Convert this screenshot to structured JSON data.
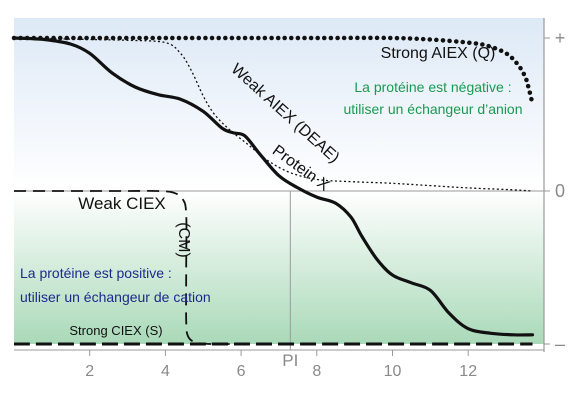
{
  "chart_data": {
    "type": "line",
    "title": "",
    "xlabel": "",
    "ylabel": "",
    "xlim": [
      0,
      14
    ],
    "ylim": [
      -1,
      1
    ],
    "x_ticks": [
      2,
      4,
      6,
      8,
      10,
      12
    ],
    "x_tick_labels": [
      "2",
      "4",
      "6",
      "8",
      "10",
      "12"
    ],
    "pi_label": "PI",
    "pi_value": 7.3,
    "y_ticks": [
      {
        "value": 1,
        "label": "+"
      },
      {
        "value": 0,
        "label": "0"
      },
      {
        "value": -1,
        "label": "–"
      }
    ],
    "colors": {
      "top_region": "#dde9f6",
      "bottom_region": "#a9d9b8",
      "negative_text": "#1a9a50",
      "positive_text": "#1c2a8c",
      "curve": "#111111",
      "axis": "#9a9a9a"
    },
    "series": [
      {
        "name": "Protein X",
        "style": "solid",
        "x": [
          0,
          0.8,
          1.5,
          2,
          2.6,
          3.2,
          3.8,
          4.4,
          5,
          5.5,
          5.8,
          6.1,
          6.5,
          7,
          7.5,
          8,
          8.5,
          8.9,
          9.2,
          9.6,
          10,
          10.5,
          11,
          11.5,
          12,
          12.6,
          13.2,
          13.7
        ],
        "y": [
          1,
          0.99,
          0.96,
          0.9,
          0.77,
          0.68,
          0.63,
          0.6,
          0.52,
          0.41,
          0.38,
          0.36,
          0.24,
          0.1,
          0.02,
          -0.04,
          -0.08,
          -0.17,
          -0.3,
          -0.45,
          -0.55,
          -0.6,
          -0.65,
          -0.8,
          -0.9,
          -0.93,
          -0.94,
          -0.94
        ]
      },
      {
        "name": "Weak AIEX (DEAE)",
        "style": "dotted",
        "x": [
          0,
          2,
          3,
          4,
          4.4,
          4.7,
          5,
          5.3,
          5.7,
          6.2,
          6.7,
          7.2,
          7.7,
          8.2,
          9,
          10,
          11,
          12,
          13,
          13.7
        ],
        "y": [
          1,
          0.99,
          0.985,
          0.97,
          0.9,
          0.78,
          0.62,
          0.5,
          0.4,
          0.3,
          0.2,
          0.13,
          0.09,
          0.07,
          0.06,
          0.05,
          0.035,
          0.02,
          0.01,
          0.0
        ]
      },
      {
        "name": "Strong AIEX (Q)",
        "style": "heavy-dotted",
        "x": [
          0,
          4,
          8,
          10,
          11,
          12,
          12.5,
          13,
          13.3,
          13.5,
          13.6,
          13.7
        ],
        "y": [
          1,
          1,
          1,
          1,
          0.99,
          0.97,
          0.95,
          0.9,
          0.83,
          0.75,
          0.67,
          0.57
        ]
      },
      {
        "name": "Weak CIEX (CM)",
        "style": "dashed",
        "x": [
          0,
          1,
          2,
          3,
          3.8,
          4.2,
          4.45,
          4.55,
          4.55,
          4.55,
          4.6,
          4.8,
          5.2,
          5.7
        ],
        "y": [
          0,
          0,
          0,
          0,
          0,
          -0.01,
          -0.05,
          -0.15,
          -0.5,
          -0.85,
          -0.95,
          -0.99,
          -1,
          -1
        ]
      },
      {
        "name": "Strong CIEX (S)",
        "style": "heavy-dashed",
        "x": [
          0,
          13.7
        ],
        "y": [
          -1,
          -1
        ]
      }
    ],
    "annotations": {
      "negative": [
        "La protéine est négative :",
        "utiliser un échangeur d’anion"
      ],
      "positive": [
        "La protéine est positive :",
        "utiliser un échangeur de cation"
      ]
    }
  }
}
